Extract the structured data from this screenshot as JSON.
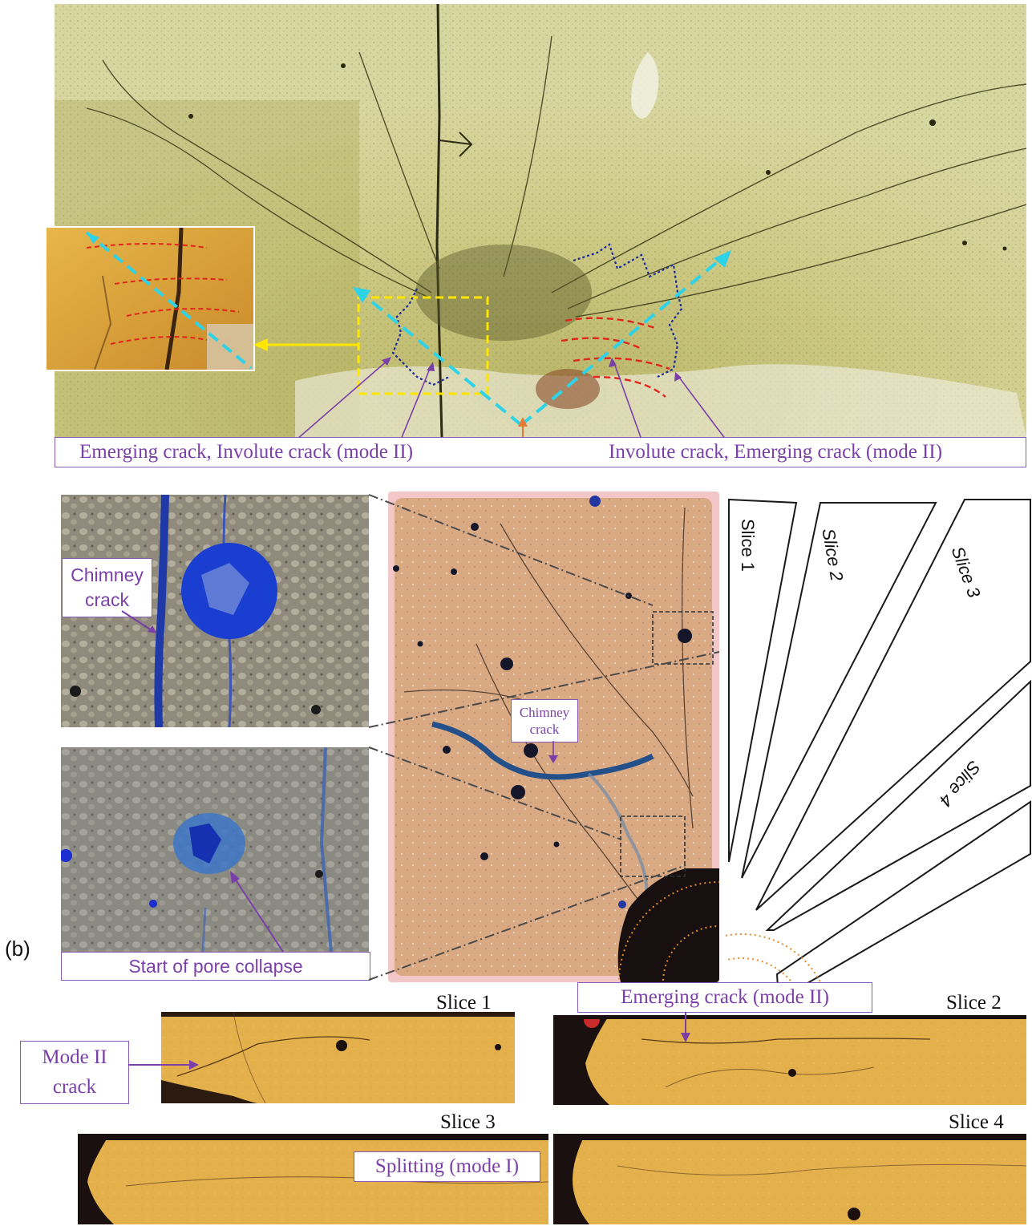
{
  "panel_a": {
    "label_left": "Emerging crack, Involute crack (mode II)",
    "label_right": "Involute crack, Emerging crack (mode II)"
  },
  "panel_b": {
    "panel_label": "(b)",
    "chimney_callout_top": "Chimney\ncrack",
    "chimney_callout_center": "Chimney\ncrack",
    "pore_collapse_callout": "Start of pore collapse",
    "slice_diagram_labels": [
      "Slice 1",
      "Slice 2",
      "Slice 3",
      "Slice 4"
    ]
  },
  "slices": {
    "slice1_title": "Slice 1",
    "slice2_title": "Slice 2",
    "slice3_title": "Slice 3",
    "slice4_title": "Slice 4",
    "mode2_callout": "Mode II\ncrack",
    "emerging_callout": "Emerging crack (mode II)",
    "splitting_callout": "Splitting (mode I)"
  },
  "colors": {
    "callout_border": "#8a5bb5",
    "callout_text": "#7b3fa8",
    "highlight_box": "#ffe600",
    "trajectory": "#2fd3e8",
    "involute": "#e0261b",
    "boundary": "#1a2a9c",
    "specimen_green": "#c9c77e",
    "slice_amber": "#e8b23a"
  }
}
